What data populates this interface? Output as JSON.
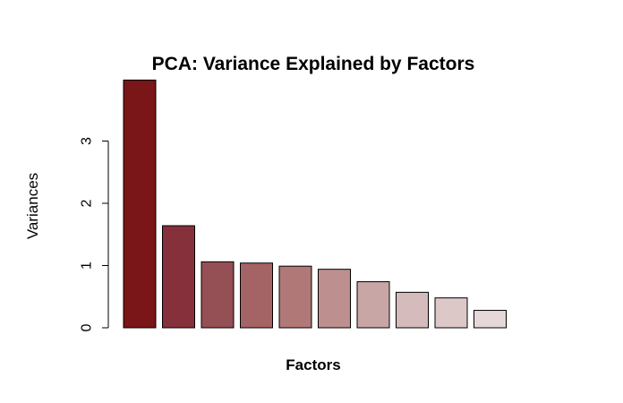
{
  "chart_data": {
    "type": "bar",
    "title": "PCA: Variance Explained by Factors",
    "xlabel": "Factors",
    "ylabel": "Variances",
    "values": [
      3.98,
      1.64,
      1.06,
      1.04,
      0.99,
      0.94,
      0.74,
      0.57,
      0.48,
      0.28
    ],
    "colors": [
      "#7A1518",
      "#85303A",
      "#955055",
      "#A46466",
      "#B07978",
      "#BD8F8F",
      "#C9A6A6",
      "#D5BBBB",
      "#DDC8C8",
      "#E6D7D8"
    ],
    "yticks": [
      0,
      1,
      2,
      3
    ],
    "ytick_labels": [
      "0",
      "1",
      "2",
      "3"
    ],
    "ylim": [
      0,
      4
    ]
  }
}
